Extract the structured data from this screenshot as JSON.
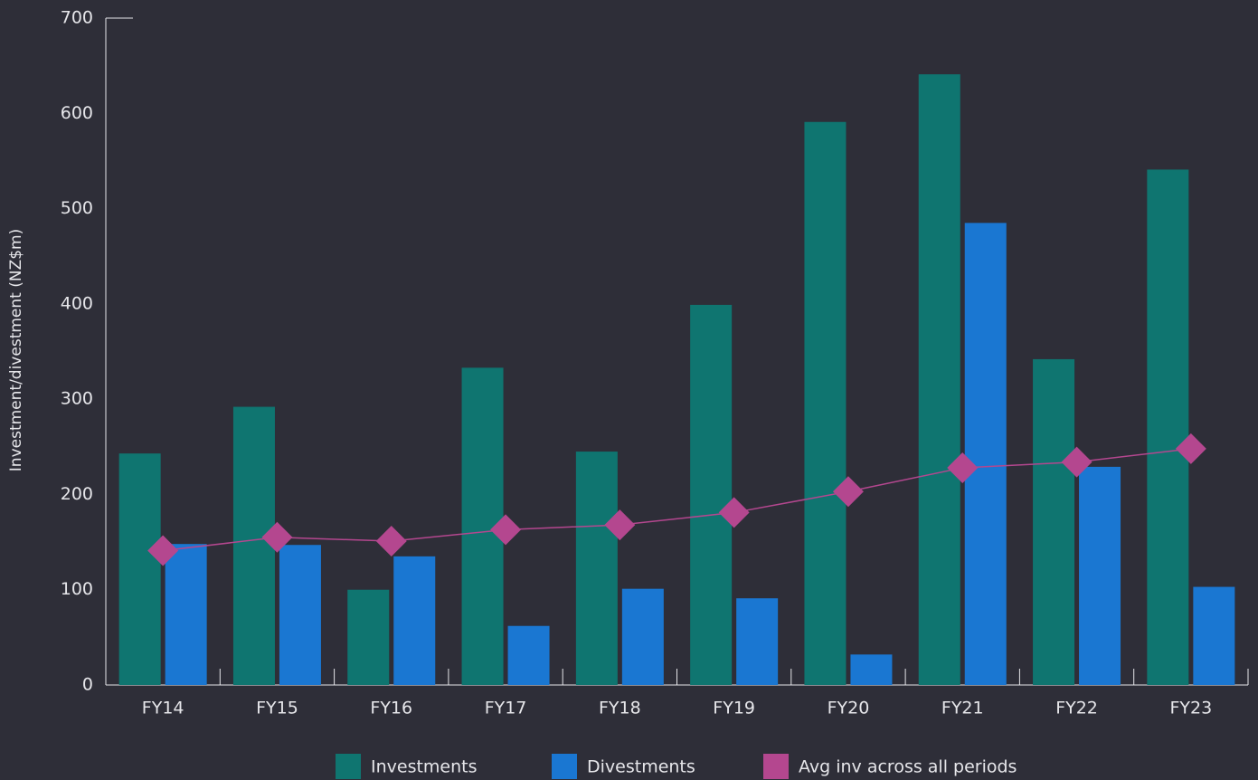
{
  "chart_data": {
    "type": "bar_line",
    "ylabel": "Investment/divestment (NZ$m)",
    "categories": [
      "FY14",
      "FY15",
      "FY16",
      "FY17",
      "FY18",
      "FY19",
      "FY20",
      "FY21",
      "FY22",
      "FY23"
    ],
    "series": [
      {
        "name": "Investments",
        "color": "#0f7570",
        "type": "bar",
        "values": [
          243,
          292,
          100,
          333,
          245,
          399,
          591,
          641,
          342,
          541
        ]
      },
      {
        "name": "Divestments",
        "color": "#1a77d2",
        "type": "bar",
        "values": [
          148,
          147,
          135,
          62,
          101,
          91,
          32,
          485,
          229,
          103
        ]
      },
      {
        "name": "Avg inv across all periods",
        "color": "#b4478f",
        "type": "line",
        "values": [
          141,
          155,
          151,
          163,
          168,
          181,
          203,
          228,
          234,
          248
        ]
      }
    ],
    "ylim": [
      0,
      700
    ],
    "yticks": [
      0,
      100,
      200,
      300,
      400,
      500,
      600,
      700
    ]
  }
}
